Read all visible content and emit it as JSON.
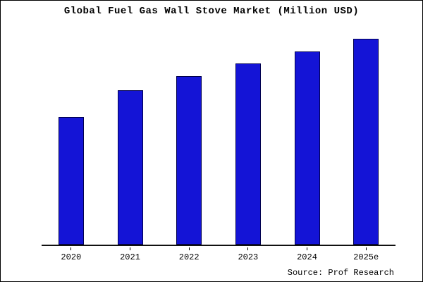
{
  "title": "Global Fuel Gas Wall Stove Market (Million USD)",
  "source": "Source: Prof Research",
  "colors": {
    "bar_fill": "#1414d6",
    "bar_border": "#00004f",
    "axis": "#111111",
    "text": "#000000"
  },
  "chart_data": {
    "type": "bar",
    "title": "Global Fuel Gas Wall Stove Market (Million USD)",
    "categories": [
      "2020",
      "2021",
      "2022",
      "2023",
      "2024",
      "2025e"
    ],
    "values": [
      62,
      75,
      82,
      88,
      94,
      100
    ],
    "xlabel": "",
    "ylabel": "",
    "ylim": [
      0,
      107
    ],
    "y_axis_labeled": false,
    "grid": false,
    "legend_position": "none",
    "bar_color": "#1414d6",
    "bar_border_color": "#00004f"
  }
}
